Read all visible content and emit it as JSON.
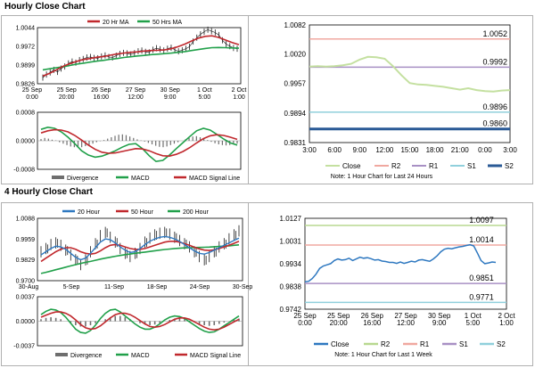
{
  "section1": {
    "title": "Hourly Close Chart"
  },
  "section2": {
    "title": "4 Hourly Close Chart"
  },
  "colors": {
    "ma_short": "#c0282d",
    "ma_long": "#21a04a",
    "price": "#1a1a1a",
    "histogram": "#6e6e6e",
    "macd": "#21a04a",
    "signal": "#c0282d",
    "close_hourly": "#c4e0a0",
    "close_4h": "#2e78c0",
    "r2_hourly": "#f0a8a0",
    "r1_hourly": "#a890c4",
    "s1_hourly": "#90d0dc",
    "s2_hourly": "#2a5a96",
    "r2_4h": "#b8d890",
    "r1_4h": "#f0a8a0",
    "s1_4h": "#a890c4",
    "s2_4h": "#90d0dc",
    "ma20_4h": "#2e78c0",
    "ma50_4h": "#c0282d",
    "ma200_4h": "#21a04a"
  },
  "chart_data": [
    {
      "id": "hourly-price",
      "type": "line",
      "legend": [
        "20 Hr MA",
        "50 Hrs MA"
      ],
      "y_ticks": [
        "1.0044",
        "0.9972",
        "0.9899",
        "0.9826"
      ],
      "ylim": [
        0.9826,
        1.0044
      ],
      "x_ticks": [
        "25 Sep\n0:00",
        "25 Sep\n20:00",
        "26 Sep\n16:00",
        "27 Sep\n12:00",
        "30 Sep\n9:00",
        "1 Oct\n5:00",
        "2 Oct\n1:00"
      ],
      "series": [
        {
          "name": "Price",
          "values": [
            0.985,
            0.9862,
            0.987,
            0.988,
            0.9872,
            0.9885,
            0.9893,
            0.9905,
            0.9912,
            0.9908,
            0.9918,
            0.9922,
            0.9928,
            0.993,
            0.9926,
            0.9925,
            0.9932,
            0.9936,
            0.993,
            0.9928,
            0.9935,
            0.9942,
            0.9946,
            0.9944,
            0.994,
            0.9945,
            0.9952,
            0.9955,
            0.995,
            0.9948,
            0.9958,
            0.9964,
            0.996,
            0.9955,
            0.9962,
            0.9966,
            0.9958,
            0.9952,
            0.9956,
            0.9962,
            0.997,
            0.999,
            1.0005,
            1.0018,
            1.0028,
            1.0036,
            1.003,
            1.0025,
            1.0015,
            0.9995,
            0.998,
            0.9972,
            0.9965,
            0.9962
          ]
        },
        {
          "name": "20 Hr MA",
          "values": [
            0.9856,
            0.9866,
            0.988,
            0.9894,
            0.9904,
            0.9913,
            0.992,
            0.9924,
            0.9929,
            0.9932,
            0.9937,
            0.9942,
            0.9945,
            0.9948,
            0.995,
            0.9953,
            0.9955,
            0.9956,
            0.9958,
            0.9962,
            0.997,
            0.998,
            0.9992,
            1.0003,
            1.001,
            1.0012,
            1.0006,
            0.9996,
            0.9986,
            0.9978
          ]
        },
        {
          "name": "50 Hrs MA",
          "values": [
            0.988,
            0.9884,
            0.9888,
            0.9892,
            0.9897,
            0.9902,
            0.9906,
            0.991,
            0.9914,
            0.9917,
            0.9921,
            0.9924,
            0.9928,
            0.9931,
            0.9934,
            0.9936,
            0.9939,
            0.9941,
            0.9943,
            0.9945,
            0.9948,
            0.9951,
            0.9955,
            0.9959,
            0.9963,
            0.9966,
            0.9967,
            0.9966,
            0.9965,
            0.9964
          ]
        }
      ]
    },
    {
      "id": "hourly-macd",
      "type": "bar",
      "legend": [
        "Divergence",
        "MACD",
        "MACD Signal Line"
      ],
      "y_ticks": [
        "0.0008",
        "0.0000",
        "-0.0008"
      ],
      "ylim": [
        -0.0008,
        0.0008
      ],
      "series": [
        {
          "name": "Divergence",
          "values": [
            5e-05,
            8e-05,
            6e-05,
            3e-05,
            1e-05,
            -4e-05,
            -8e-05,
            -0.00012,
            -0.00016,
            -0.00018,
            -0.00019,
            -0.00018,
            -0.00015,
            -0.00012,
            -8e-05,
            -4e-05,
            -1e-05,
            2e-05,
            6e-05,
            0.0001,
            0.00014,
            0.00017,
            0.00018,
            0.00016,
            0.00012,
            8e-05,
            4e-05,
            1e-05,
            -2e-05,
            -6e-05,
            -0.0001,
            -0.00014,
            -0.00017,
            -0.00018,
            -0.00016,
            -0.00012,
            -8e-05,
            -4e-05,
            0.0,
            4e-05,
            8e-05,
            0.00012,
            0.00013,
            0.0001,
            6e-05,
            2e-05,
            -3e-05,
            -7e-05,
            -0.0001,
            -0.00012,
            -0.00013,
            -0.00012,
            -0.0001,
            -8e-05
          ]
        },
        {
          "name": "MACD",
          "values": [
            0.00032,
            0.00038,
            0.00035,
            0.00025,
            0.0001,
            -8e-05,
            -0.00028,
            -0.0004,
            -0.00046,
            -0.00043,
            -0.00036,
            -0.00028,
            -0.00018,
            -0.0001,
            -8e-05,
            -0.00022,
            -0.00042,
            -0.00058,
            -0.00055,
            -0.0004,
            -0.00022,
            -5e-05,
            0.00012,
            0.00028,
            0.00035,
            0.0003,
            0.00018,
            5e-05,
            -6e-05,
            -0.00012
          ]
        },
        {
          "name": "MACD Signal Line",
          "values": [
            0.00022,
            0.00028,
            0.00031,
            0.0003,
            0.00025,
            0.00015,
            2e-05,
            -0.00012,
            -0.00024,
            -0.00032,
            -0.00035,
            -0.00034,
            -0.0003,
            -0.00026,
            -0.00022,
            -0.00023,
            -0.00028,
            -0.00036,
            -0.00042,
            -0.00043,
            -0.00038,
            -0.0003,
            -0.00019,
            -6e-05,
            6e-05,
            0.00014,
            0.00017,
            0.00015,
            0.0001,
            4e-05
          ]
        }
      ]
    },
    {
      "id": "hourly-pivots",
      "type": "line",
      "y_ticks": [
        "1.0082",
        "1.0020",
        "0.9957",
        "0.9894",
        "0.9831"
      ],
      "ylim": [
        0.9831,
        1.0082
      ],
      "x_ticks": [
        "3:00",
        "6:00",
        "9:00",
        "12:00",
        "15:00",
        "18:00",
        "21:00",
        "0:00",
        "3:00"
      ],
      "levels": [
        {
          "name": "R2",
          "value": 1.0052,
          "label": "1.0052"
        },
        {
          "name": "R1",
          "value": 0.9992,
          "label": "0.9992"
        },
        {
          "name": "S1",
          "value": 0.9896,
          "label": "0.9896"
        },
        {
          "name": "S2",
          "value": 0.986,
          "label": "0.9860"
        }
      ],
      "series": [
        {
          "name": "Close",
          "x": [
            0,
            1,
            2,
            3,
            4,
            5,
            6,
            7,
            8,
            9,
            10,
            11,
            12,
            13,
            14,
            15,
            16,
            17,
            18,
            19,
            20,
            21,
            22,
            23,
            24
          ],
          "values": [
            0.9993,
            0.9994,
            0.9993,
            0.9994,
            0.9996,
            0.9999,
            1.0008,
            1.0014,
            1.0013,
            1.001,
            0.9994,
            0.9975,
            0.9958,
            0.9955,
            0.9954,
            0.9952,
            0.995,
            0.9947,
            0.9944,
            0.9947,
            0.9943,
            0.9941,
            0.994,
            0.9942,
            0.9943
          ]
        }
      ],
      "legend": [
        "Close",
        "R2",
        "R1",
        "S1",
        "S2"
      ],
      "note": "Note: 1 Hour Chart for Last 24 Hours"
    },
    {
      "id": "4h-price",
      "type": "line",
      "legend": [
        "20 Hour",
        "50 Hour",
        "200 Hour"
      ],
      "y_ticks": [
        "1.0088",
        "0.9959",
        "0.9829",
        "0.9700"
      ],
      "ylim": [
        0.97,
        1.0088
      ],
      "x_ticks": [
        "30-Aug",
        "5-Sep",
        "11-Sep",
        "18-Sep",
        "24-Sep",
        "30-Sep"
      ],
      "series": [
        {
          "name": "Price",
          "values": [
            0.988,
            0.99,
            0.9925,
            0.9935,
            0.992,
            0.989,
            0.986,
            0.983,
            0.98,
            0.983,
            0.988,
            0.993,
            0.998,
            1.0,
            0.997,
            0.994,
            0.99,
            0.987,
            0.985,
            0.987,
            0.99,
            0.994,
            0.9965,
            0.9985,
            0.9995,
            1.0,
            0.999,
            0.997,
            0.995,
            0.993,
            0.991,
            0.988,
            0.985,
            0.983,
            0.985,
            0.988,
            0.991,
            0.993,
            0.996,
            0.9985,
            1.001
          ]
        },
        {
          "name": "20 Hour",
          "values": [
            0.986,
            0.988,
            0.99,
            0.9915,
            0.991,
            0.9895,
            0.987,
            0.9845,
            0.983,
            0.984,
            0.987,
            0.9905,
            0.994,
            0.996,
            0.9955,
            0.9935,
            0.991,
            0.989,
            0.9875,
            0.988,
            0.99,
            0.9925,
            0.9945,
            0.996,
            0.997,
            0.9975,
            0.997,
            0.996,
            0.9945,
            0.9925,
            0.9905,
            0.9885,
            0.987,
            0.9865,
            0.9875,
            0.989,
            0.9905,
            0.992,
            0.9935,
            0.995,
            0.9965
          ]
        },
        {
          "name": "50 Hour",
          "values": [
            0.982,
            0.984,
            0.986,
            0.988,
            0.9895,
            0.9905,
            0.9905,
            0.9895,
            0.988,
            0.987,
            0.9865,
            0.987,
            0.9885,
            0.9905,
            0.992,
            0.9925,
            0.992,
            0.991,
            0.99,
            0.9895,
            0.9895,
            0.99,
            0.991,
            0.992,
            0.993,
            0.994,
            0.9945,
            0.9945,
            0.994,
            0.993,
            0.992,
            0.9908,
            0.9898,
            0.989,
            0.9888,
            0.9892,
            0.99,
            0.991,
            0.992,
            0.9932,
            0.9945
          ]
        },
        {
          "name": "200 Hour",
          "values": [
            0.9745,
            0.9752,
            0.976,
            0.9768,
            0.9776,
            0.9784,
            0.9792,
            0.98,
            0.9807,
            0.9814,
            0.982,
            0.9827,
            0.9834,
            0.984,
            0.9846,
            0.9852,
            0.9857,
            0.9862,
            0.9866,
            0.987,
            0.9874,
            0.9878,
            0.9882,
            0.9886,
            0.989,
            0.9894,
            0.9897,
            0.99,
            0.9902,
            0.9904,
            0.9905,
            0.9906,
            0.9907,
            0.9908,
            0.9909,
            0.9911,
            0.9913,
            0.9915,
            0.9917,
            0.992,
            0.9923
          ]
        }
      ]
    },
    {
      "id": "4h-macd",
      "type": "bar",
      "legend": [
        "Divergence",
        "MACD",
        "MACD Signal Line"
      ],
      "y_ticks": [
        "0.0037",
        "0.0000",
        "-0.0037"
      ],
      "ylim": [
        -0.0037,
        0.0037
      ],
      "series": [
        {
          "name": "Divergence",
          "values": [
            0.0003,
            0.0005,
            0.0006,
            0.0005,
            0.0003,
            0.0,
            -0.0003,
            -0.0006,
            -0.0008,
            -0.0008,
            -0.0006,
            -0.0003,
            0.0,
            0.0003,
            0.0006,
            0.0008,
            0.0008,
            0.0006,
            0.0003,
            0.0,
            -0.0003,
            -0.0005,
            -0.0006,
            -0.0005,
            -0.0003,
            0.0,
            0.0002,
            0.0004,
            0.0004,
            0.0003,
            0.0001,
            -0.0002,
            -0.0004,
            -0.0006,
            -0.0007,
            -0.0006,
            -0.0004,
            -0.0002,
            0.0,
            0.0002,
            0.0004
          ]
        },
        {
          "name": "MACD",
          "values": [
            0.001,
            0.0015,
            0.0018,
            0.0017,
            0.0013,
            0.0006,
            -0.0003,
            -0.0012,
            -0.0017,
            -0.0018,
            -0.0014,
            -0.0006,
            0.0004,
            0.0012,
            0.0017,
            0.0018,
            0.0014,
            0.0008,
            0.0002,
            -0.0004,
            -0.0009,
            -0.0012,
            -0.0012,
            -0.0009,
            -0.0004,
            0.0002,
            0.0006,
            0.0008,
            0.0007,
            0.0004,
            -0.0001,
            -0.0006,
            -0.0011,
            -0.0015,
            -0.0017,
            -0.0016,
            -0.0012,
            -0.0007,
            -0.0002,
            0.0003,
            0.0008
          ]
        },
        {
          "name": "MACD Signal Line",
          "values": [
            0.0006,
            0.0009,
            0.0012,
            0.0014,
            0.0014,
            0.0012,
            0.0008,
            0.0002,
            -0.0005,
            -0.001,
            -0.0012,
            -0.0011,
            -0.0007,
            -0.0001,
            0.0005,
            0.001,
            0.0012,
            0.0012,
            0.001,
            0.0006,
            0.0001,
            -0.0004,
            -0.0008,
            -0.0009,
            -0.0008,
            -0.0005,
            -0.0001,
            0.0003,
            0.0005,
            0.0005,
            0.0003,
            -0.0001,
            -0.0005,
            -0.0009,
            -0.0012,
            -0.0013,
            -0.0012,
            -0.0009,
            -0.0005,
            -0.0001,
            0.0003
          ]
        }
      ]
    },
    {
      "id": "4h-pivots",
      "type": "line",
      "y_ticks": [
        "1.0127",
        "1.0031",
        "0.9934",
        "0.9838",
        "0.9742"
      ],
      "ylim": [
        0.9742,
        1.0127
      ],
      "x_ticks": [
        "25 Sep\n0:00",
        "25 Sep\n20:00",
        "26 Sep\n16:00",
        "27 Sep\n12:00",
        "30 Sep\n9:00",
        "1 Oct\n5:00",
        "2 Oct\n1:00"
      ],
      "levels": [
        {
          "name": "R2",
          "value": 1.0097,
          "label": "1.0097"
        },
        {
          "name": "R1",
          "value": 1.0014,
          "label": "1.0014"
        },
        {
          "name": "S1",
          "value": 0.9851,
          "label": "0.9851"
        },
        {
          "name": "S2",
          "value": 0.9771,
          "label": "0.9771"
        }
      ],
      "series": [
        {
          "name": "Close",
          "values": [
            0.9858,
            0.986,
            0.9872,
            0.989,
            0.9915,
            0.9925,
            0.993,
            0.9935,
            0.9948,
            0.9955,
            0.995,
            0.9952,
            0.9958,
            0.9948,
            0.9955,
            0.9962,
            0.9958,
            0.996,
            0.9956,
            0.995,
            0.9952,
            0.9946,
            0.9944,
            0.994,
            0.994,
            0.9936,
            0.9942,
            0.9936,
            0.994,
            0.9945,
            0.9942,
            0.995,
            0.9952,
            0.9948,
            0.9945,
            0.9955,
            0.9968,
            0.9985,
            0.9996,
            1.0,
            0.9998,
            1.0002,
            1.0006,
            1.0008,
            1.0012,
            1.0015,
            1.001,
            0.998,
            0.9948,
            0.9935,
            0.9938,
            0.9942,
            0.994
          ]
        }
      ],
      "legend": [
        "Close",
        "R2",
        "R1",
        "S1",
        "S2"
      ],
      "note": "Note: 1 Hour Chart for Last 1 Week"
    }
  ]
}
